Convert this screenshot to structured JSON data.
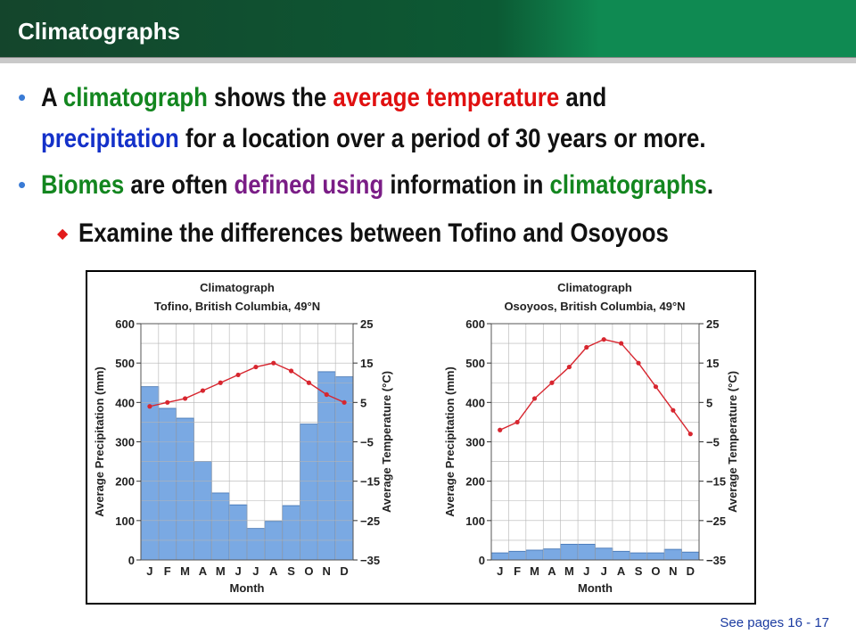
{
  "slide": {
    "title": "Climatographs",
    "bullet1": {
      "p1": "A ",
      "p2": "climatograph",
      "p3": " shows the ",
      "p4": "average temperature",
      "p5": " and",
      "p6": "precipitation",
      "p7": " for a location over a period of 30 years or more."
    },
    "bullet2": {
      "p1": "Biomes",
      "p2": " are often ",
      "p3": "defined using",
      "p4": " information in ",
      "p5": "climatographs",
      "p6": "."
    },
    "sub_bullet": "Examine the differences between Tofino and Osoyoos",
    "footer": "See pages 16 - 17"
  },
  "chart_data": [
    {
      "type": "bar+line",
      "title": "Climatograph",
      "subtitle": "Tofino, British Columbia, 49°N",
      "xlabel": "Month",
      "ylabel": "Average Precipitation (mm)",
      "y2label": "Average Temperature (°C)",
      "categories": [
        "J",
        "F",
        "M",
        "A",
        "M",
        "J",
        "J",
        "A",
        "S",
        "O",
        "N",
        "D"
      ],
      "precip_ylim": [
        0,
        600
      ],
      "precip_ticks": [
        "0",
        "100",
        "200",
        "300",
        "400",
        "500",
        "600"
      ],
      "temp_ylim": [
        -35,
        25
      ],
      "temp_ticks": [
        "25",
        "15",
        "5",
        "−5",
        "−15",
        "−25",
        "−35"
      ],
      "precipitation": [
        440,
        385,
        360,
        250,
        170,
        140,
        80,
        98,
        138,
        345,
        478,
        465
      ],
      "temperature": [
        4,
        5,
        6,
        8,
        10,
        12,
        14,
        15,
        13,
        10,
        7,
        5
      ],
      "bar_color": "#7aa9e3",
      "line_color": "#d7262f"
    },
    {
      "type": "bar+line",
      "title": "Climatograph",
      "subtitle": "Osoyoos, British Columbia, 49°N",
      "xlabel": "Month",
      "ylabel": "Average Precipitation (mm)",
      "y2label": "Average Temperature (°C)",
      "categories": [
        "J",
        "F",
        "M",
        "A",
        "M",
        "J",
        "J",
        "A",
        "S",
        "O",
        "N",
        "D"
      ],
      "precip_ylim": [
        0,
        600
      ],
      "precip_ticks": [
        "0",
        "100",
        "200",
        "300",
        "400",
        "500",
        "600"
      ],
      "temp_ylim": [
        -35,
        25
      ],
      "temp_ticks": [
        "25",
        "15",
        "5",
        "−5",
        "−15",
        "−25",
        "−35"
      ],
      "precipitation": [
        18,
        22,
        25,
        28,
        40,
        40,
        30,
        22,
        18,
        18,
        27,
        20
      ],
      "temperature": [
        -2,
        0,
        6,
        10,
        14,
        19,
        21,
        20,
        15,
        9,
        3,
        -3
      ],
      "bar_color": "#7aa9e3",
      "line_color": "#d7262f"
    }
  ]
}
